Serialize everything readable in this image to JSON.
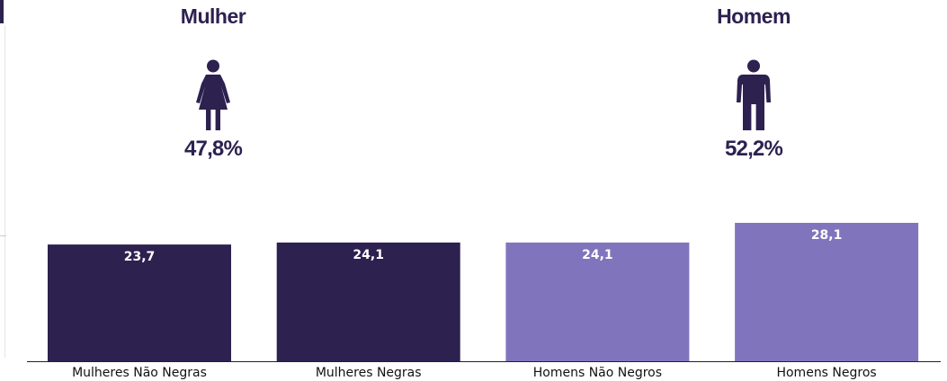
{
  "groups": [
    {
      "title": "Mulher",
      "percent": "47,8%",
      "icon": "woman-icon"
    },
    {
      "title": "Homem",
      "percent": "52,2%",
      "icon": "man-icon"
    }
  ],
  "colors": {
    "dark": "#2d2150",
    "light": "#8075bd",
    "label": "#ffffff",
    "axis": "#222222"
  },
  "chart_data": {
    "type": "bar",
    "categories": [
      "Mulheres Não Negras",
      "Mulheres Negras",
      "Homens Não Negros",
      "Homens Negros"
    ],
    "values": [
      23.7,
      24.1,
      24.1,
      28.1
    ],
    "data_labels": [
      "23,7",
      "24,1",
      "24,1",
      "28,1"
    ],
    "bar_colors": [
      "#2d2150",
      "#2d2150",
      "#8075bd",
      "#8075bd"
    ],
    "title": "",
    "xlabel": "",
    "ylabel": "",
    "ylim": [
      0,
      28.1
    ],
    "grid": false,
    "legend": "none"
  }
}
